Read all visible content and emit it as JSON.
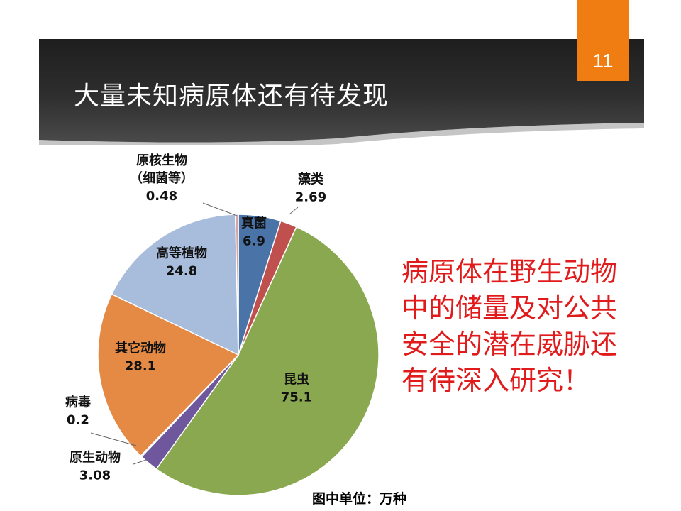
{
  "slide": {
    "title": "大量未知病原体还有待发现",
    "page_number": "11"
  },
  "callout_lines": [
    "病原体在野生动物",
    "中的储量及对公共",
    "安全的潜在威胁还",
    "有待深入研究！"
  ],
  "unit_note": "图中单位：万种",
  "colors": {
    "title_band": "#2b2b2b",
    "page_tab": "#ef7d12",
    "callout": "#e11b1b"
  },
  "chart_data": {
    "type": "pie",
    "title": "",
    "unit": "万种",
    "start": "12 o'clock, clockwise",
    "slices": [
      {
        "label": "真菌",
        "value": 6.9,
        "value_text": "6.9",
        "color": "#4a73a8"
      },
      {
        "label": "藻类",
        "value": 2.69,
        "value_text": "2.69",
        "color": "#c0504d"
      },
      {
        "label": "昆虫",
        "value": 75.1,
        "value_text": "75.1",
        "color": "#8aa84f"
      },
      {
        "label": "原生动物",
        "value": 3.08,
        "value_text": "3.08",
        "color": "#6f579e"
      },
      {
        "label": "病毒",
        "value": 0.2,
        "value_text": "0.2",
        "color": "#3aa7c4"
      },
      {
        "label": "其它动物",
        "value": 28.1,
        "value_text": "28.1",
        "color": "#e48a45"
      },
      {
        "label": "高等植物",
        "value": 24.8,
        "value_text": "24.8",
        "color": "#a8bcdc"
      },
      {
        "label_lines": [
          "原核生物",
          "（细菌等）"
        ],
        "value": 0.48,
        "value_text": "0.48",
        "color": "#d8a5a3"
      }
    ]
  }
}
